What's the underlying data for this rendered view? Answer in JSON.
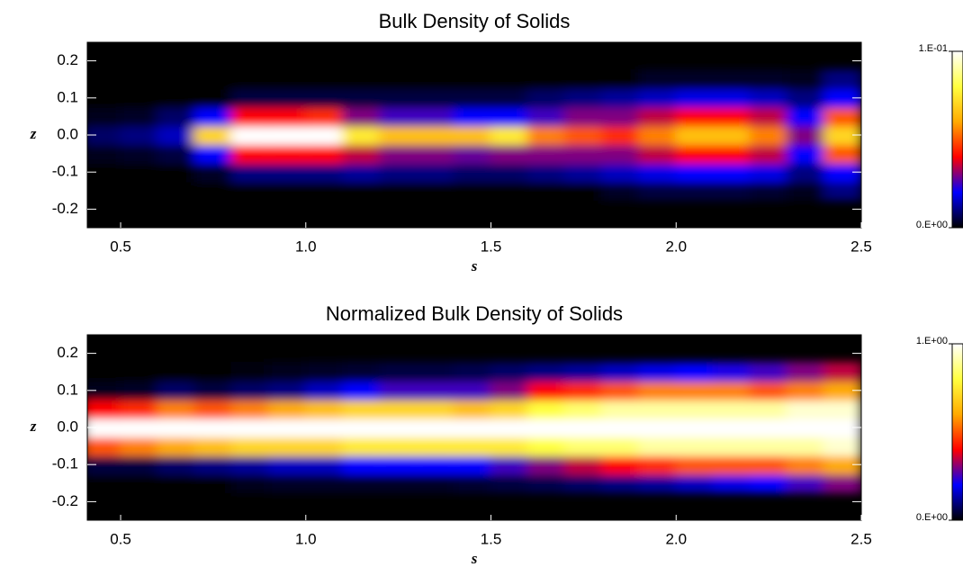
{
  "chart_data": [
    {
      "type": "heatmap",
      "title": "Bulk Density of Solids",
      "xlabel": "s",
      "ylabel": "z",
      "x": [
        0.45,
        0.55,
        0.65,
        0.75,
        0.85,
        0.95,
        1.05,
        1.15,
        1.25,
        1.35,
        1.45,
        1.55,
        1.65,
        1.75,
        1.85,
        1.95,
        2.05,
        2.15,
        2.25,
        2.35,
        2.45
      ],
      "y": [
        -0.15,
        -0.1,
        -0.05,
        0,
        0.05,
        0.1,
        0.15
      ],
      "values": [
        [
          0,
          0,
          0,
          0,
          0,
          0,
          0,
          0,
          0,
          0,
          0,
          0,
          0,
          0,
          0.003,
          0.005,
          0.005,
          0.005,
          0.004,
          0.002,
          0.01
        ],
        [
          0,
          0,
          0,
          0.003,
          0.01,
          0.01,
          0.01,
          0.012,
          0.01,
          0.01,
          0.008,
          0.008,
          0.01,
          0.012,
          0.015,
          0.018,
          0.02,
          0.02,
          0.018,
          0.01,
          0.02
        ],
        [
          0.002,
          0.003,
          0.005,
          0.02,
          0.04,
          0.04,
          0.04,
          0.035,
          0.03,
          0.03,
          0.028,
          0.03,
          0.03,
          0.03,
          0.03,
          0.035,
          0.04,
          0.04,
          0.035,
          0.02,
          0.05
        ],
        [
          0.008,
          0.01,
          0.015,
          0.07,
          0.1,
          0.1,
          0.1,
          0.075,
          0.065,
          0.065,
          0.065,
          0.075,
          0.055,
          0.05,
          0.045,
          0.055,
          0.065,
          0.065,
          0.055,
          0.03,
          0.07
        ],
        [
          0.002,
          0.003,
          0.008,
          0.02,
          0.04,
          0.04,
          0.045,
          0.03,
          0.025,
          0.025,
          0.02,
          0.02,
          0.025,
          0.03,
          0.03,
          0.035,
          0.04,
          0.04,
          0.035,
          0.02,
          0.05
        ],
        [
          0,
          0,
          0,
          0,
          0.005,
          0.005,
          0.005,
          0.005,
          0.005,
          0.005,
          0.005,
          0.005,
          0.008,
          0.01,
          0.012,
          0.015,
          0.018,
          0.018,
          0.015,
          0.01,
          0.02
        ],
        [
          0,
          0,
          0,
          0,
          0,
          0,
          0,
          0,
          0,
          0,
          0,
          0,
          0,
          0,
          0,
          0.003,
          0.003,
          0.003,
          0.003,
          0.002,
          0.01
        ]
      ],
      "xlim": [
        0.41,
        2.5
      ],
      "ylim": [
        -0.25,
        0.25
      ],
      "xticks": [
        0.5,
        {
          "value": 1,
          "label": "1.0"
        },
        1.5,
        {
          "value": 2,
          "label": "2.0"
        },
        2.5
      ],
      "yticks": [
        -0.2,
        -0.1,
        {
          "value": 0,
          "label": "0.0"
        },
        0.1,
        0.2
      ],
      "clim": [
        0,
        0.1
      ],
      "cticks": [
        {
          "value": 0,
          "label": "0.E+00"
        },
        {
          "value": 0.1,
          "label": "1.E-01"
        }
      ],
      "colormap": [
        "#000000",
        "#0000ff",
        "#ff0000",
        "#ffaa00",
        "#ffff40",
        "#ffffff"
      ]
    },
    {
      "type": "heatmap",
      "title": "Normalized Bulk Density of Solids",
      "xlabel": "s",
      "ylabel": "z",
      "x": [
        0.45,
        0.55,
        0.65,
        0.75,
        0.85,
        0.95,
        1.05,
        1.15,
        1.25,
        1.35,
        1.45,
        1.55,
        1.65,
        1.75,
        1.85,
        1.95,
        2.05,
        2.15,
        2.25,
        2.35,
        2.45
      ],
      "y": [
        -0.15,
        -0.1,
        -0.05,
        0,
        0.05,
        0.1,
        0.15
      ],
      "values": [
        [
          0,
          0,
          0,
          0,
          0.02,
          0.03,
          0.03,
          0.03,
          0.03,
          0.03,
          0.04,
          0.05,
          0.06,
          0.08,
          0.1,
          0.12,
          0.15,
          0.18,
          0.2,
          0.25,
          0.3
        ],
        [
          0.05,
          0.05,
          0.08,
          0.1,
          0.12,
          0.15,
          0.15,
          0.2,
          0.2,
          0.2,
          0.2,
          0.25,
          0.3,
          0.35,
          0.4,
          0.45,
          0.5,
          0.5,
          0.5,
          0.55,
          0.6
        ],
        [
          0.5,
          0.55,
          0.6,
          0.65,
          0.7,
          0.7,
          0.7,
          0.75,
          0.75,
          0.75,
          0.75,
          0.75,
          0.8,
          0.85,
          0.85,
          0.9,
          0.9,
          0.9,
          0.9,
          0.9,
          0.95
        ],
        [
          1,
          1,
          1,
          1,
          1,
          1,
          1,
          1,
          1,
          1,
          1,
          1,
          1,
          1,
          1,
          1,
          1,
          1,
          1,
          1,
          1
        ],
        [
          0.4,
          0.45,
          0.55,
          0.5,
          0.55,
          0.6,
          0.65,
          0.7,
          0.7,
          0.7,
          0.65,
          0.7,
          0.8,
          0.85,
          0.9,
          0.9,
          0.9,
          0.9,
          0.9,
          0.95,
          0.95
        ],
        [
          0.02,
          0.03,
          0.08,
          0.05,
          0.08,
          0.1,
          0.15,
          0.2,
          0.25,
          0.25,
          0.25,
          0.3,
          0.4,
          0.45,
          0.5,
          0.55,
          0.55,
          0.55,
          0.5,
          0.55,
          0.6
        ],
        [
          0,
          0,
          0,
          0,
          0.01,
          0.02,
          0.03,
          0.04,
          0.05,
          0.05,
          0.06,
          0.08,
          0.1,
          0.12,
          0.15,
          0.18,
          0.2,
          0.22,
          0.25,
          0.3,
          0.35
        ]
      ],
      "xlim": [
        0.41,
        2.5
      ],
      "ylim": [
        -0.25,
        0.25
      ],
      "xticks": [
        0.5,
        {
          "value": 1,
          "label": "1.0"
        },
        1.5,
        {
          "value": 2,
          "label": "2.0"
        },
        2.5
      ],
      "yticks": [
        -0.2,
        -0.1,
        {
          "value": 0,
          "label": "0.0"
        },
        0.1,
        0.2
      ],
      "clim": [
        0,
        1
      ],
      "cticks": [
        {
          "value": 0,
          "label": "0.E+00"
        },
        {
          "value": 1,
          "label": "1.E+00"
        }
      ],
      "colormap": [
        "#000000",
        "#0000ff",
        "#ff0000",
        "#ffaa00",
        "#ffff40",
        "#ffffff"
      ]
    }
  ]
}
